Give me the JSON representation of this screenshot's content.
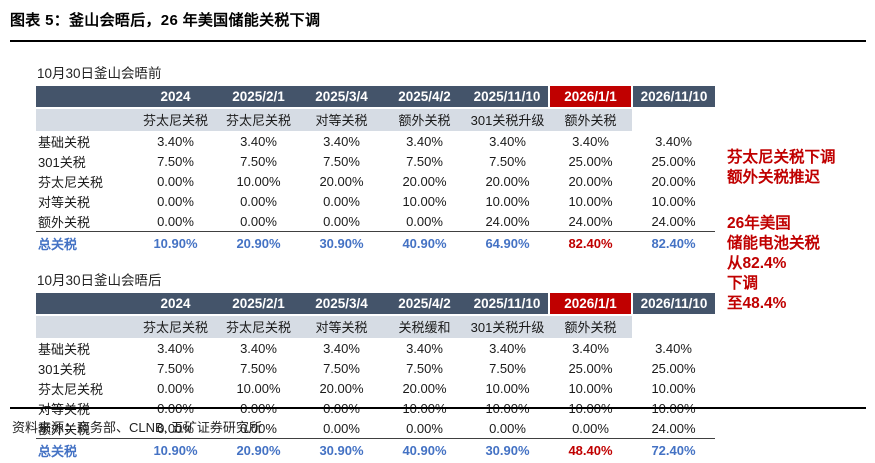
{
  "header": {
    "title": "图表 5：釜山会晤后，26 年美国储能关税下调"
  },
  "colors": {
    "table_header_bg": "#44546A",
    "table_subheader_bg": "#D6DCE4",
    "highlight_red": "#C00000",
    "total_blue": "#4472C4"
  },
  "tables": [
    {
      "title": "10月30日釜山会晤前",
      "columns": [
        "2024",
        "2025/2/1",
        "2025/3/4",
        "2025/4/2",
        "2025/11/10",
        "2026/1/1",
        "2026/11/10"
      ],
      "highlight_col": 5,
      "subheaders": [
        "",
        "芬太尼关税",
        "芬太尼关税",
        "对等关税",
        "额外关税",
        "301关税升级",
        "额外关税"
      ],
      "rows": [
        {
          "label": "基础关税",
          "values": [
            "3.40%",
            "3.40%",
            "3.40%",
            "3.40%",
            "3.40%",
            "3.40%",
            "3.40%"
          ]
        },
        {
          "label": "301关税",
          "values": [
            "7.50%",
            "7.50%",
            "7.50%",
            "7.50%",
            "7.50%",
            "25.00%",
            "25.00%"
          ]
        },
        {
          "label": "芬太尼关税",
          "values": [
            "0.00%",
            "10.00%",
            "20.00%",
            "20.00%",
            "20.00%",
            "20.00%",
            "20.00%"
          ]
        },
        {
          "label": "对等关税",
          "values": [
            "0.00%",
            "0.00%",
            "0.00%",
            "10.00%",
            "10.00%",
            "10.00%",
            "10.00%"
          ]
        },
        {
          "label": "额外关税",
          "values": [
            "0.00%",
            "0.00%",
            "0.00%",
            "0.00%",
            "24.00%",
            "24.00%",
            "24.00%"
          ]
        }
      ],
      "total": {
        "label": "总关税",
        "values": [
          "10.90%",
          "20.90%",
          "30.90%",
          "40.90%",
          "64.90%",
          "82.40%",
          "82.40%"
        ],
        "red_index": 5
      }
    },
    {
      "title": "10月30日釜山会晤后",
      "columns": [
        "2024",
        "2025/2/1",
        "2025/3/4",
        "2025/4/2",
        "2025/11/10",
        "2026/1/1",
        "2026/11/10"
      ],
      "highlight_col": 5,
      "subheaders": [
        "",
        "芬太尼关税",
        "芬太尼关税",
        "对等关税",
        "关税缓和",
        "301关税升级",
        "额外关税"
      ],
      "rows": [
        {
          "label": "基础关税",
          "values": [
            "3.40%",
            "3.40%",
            "3.40%",
            "3.40%",
            "3.40%",
            "3.40%",
            "3.40%"
          ]
        },
        {
          "label": "301关税",
          "values": [
            "7.50%",
            "7.50%",
            "7.50%",
            "7.50%",
            "7.50%",
            "25.00%",
            "25.00%"
          ]
        },
        {
          "label": "芬太尼关税",
          "values": [
            "0.00%",
            "10.00%",
            "20.00%",
            "20.00%",
            "10.00%",
            "10.00%",
            "10.00%"
          ]
        },
        {
          "label": "对等关税",
          "values": [
            "0.00%",
            "0.00%",
            "0.00%",
            "10.00%",
            "10.00%",
            "10.00%",
            "10.00%"
          ]
        },
        {
          "label": "额外关税",
          "values": [
            "0.00%",
            "0.00%",
            "0.00%",
            "0.00%",
            "0.00%",
            "0.00%",
            "24.00%"
          ]
        }
      ],
      "total": {
        "label": "总关税",
        "values": [
          "10.90%",
          "20.90%",
          "30.90%",
          "40.90%",
          "30.90%",
          "48.40%",
          "72.40%"
        ],
        "red_index": 5
      }
    }
  ],
  "annotations": [
    {
      "lines": [
        "芬太尼关税下调",
        "额外关税推迟"
      ]
    },
    {
      "lines": [
        "26年美国",
        "储能电池关税",
        "从82.4%",
        "下调",
        "至48.4%"
      ]
    }
  ],
  "footer": {
    "source": "资料来源：商务部、CLNB, 五矿证券研究所"
  }
}
